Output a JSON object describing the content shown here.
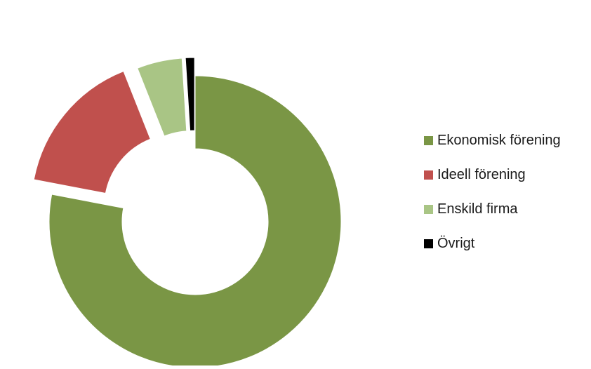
{
  "chart_data": {
    "type": "pie",
    "style": "exploded-doughnut",
    "categories": [
      "Ekonomisk förening",
      "Ideell förening",
      "Enskild firma",
      "Övrigt"
    ],
    "values": [
      78,
      16,
      5,
      1
    ],
    "colors": [
      "#7a9645",
      "#c0504d",
      "#a9c585",
      "#000000"
    ],
    "title": "",
    "legend_position": "right"
  }
}
